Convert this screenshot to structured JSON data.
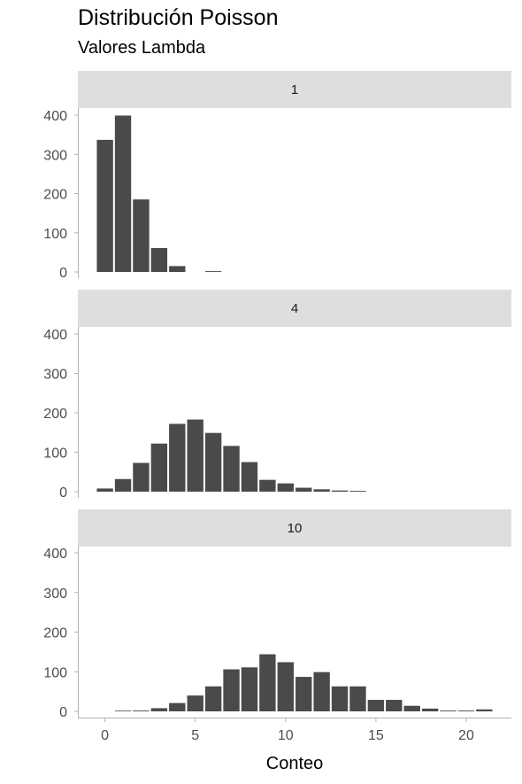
{
  "title": "Distribución Poisson",
  "subtitle": "Valores Lambda",
  "chart_data": {
    "type": "bar",
    "title": "Distribución Poisson",
    "subtitle": "Valores Lambda",
    "xlabel": "Conteo",
    "ylabel": "",
    "xlim": [
      -1.5,
      22.5
    ],
    "ylim": [
      0,
      420
    ],
    "x_ticks": [
      0,
      5,
      10,
      15,
      20
    ],
    "y_ticks": [
      0,
      100,
      200,
      300,
      400
    ],
    "grid": false,
    "bar_color": "#4a4a4a",
    "strip_color": "#dedede",
    "axis_color": "#b3b3b3",
    "panels": [
      {
        "label": "1",
        "x": [
          0,
          1,
          2,
          3,
          4,
          5,
          6
        ],
        "values": [
          337,
          399,
          185,
          61,
          15,
          0,
          2
        ]
      },
      {
        "label": "4",
        "x": [
          0,
          1,
          2,
          3,
          4,
          5,
          6,
          7,
          8,
          9,
          10,
          11,
          12,
          13,
          14
        ],
        "values": [
          8,
          32,
          73,
          122,
          172,
          183,
          149,
          116,
          75,
          30,
          21,
          10,
          6,
          3,
          2
        ]
      },
      {
        "label": "10",
        "x": [
          1,
          2,
          3,
          4,
          5,
          6,
          7,
          8,
          9,
          10,
          11,
          12,
          13,
          14,
          15,
          16,
          17,
          18,
          19,
          20,
          21
        ],
        "values": [
          1,
          2,
          8,
          21,
          40,
          63,
          106,
          111,
          144,
          124,
          87,
          99,
          63,
          63,
          29,
          29,
          14,
          7,
          2,
          2,
          5
        ]
      }
    ]
  }
}
